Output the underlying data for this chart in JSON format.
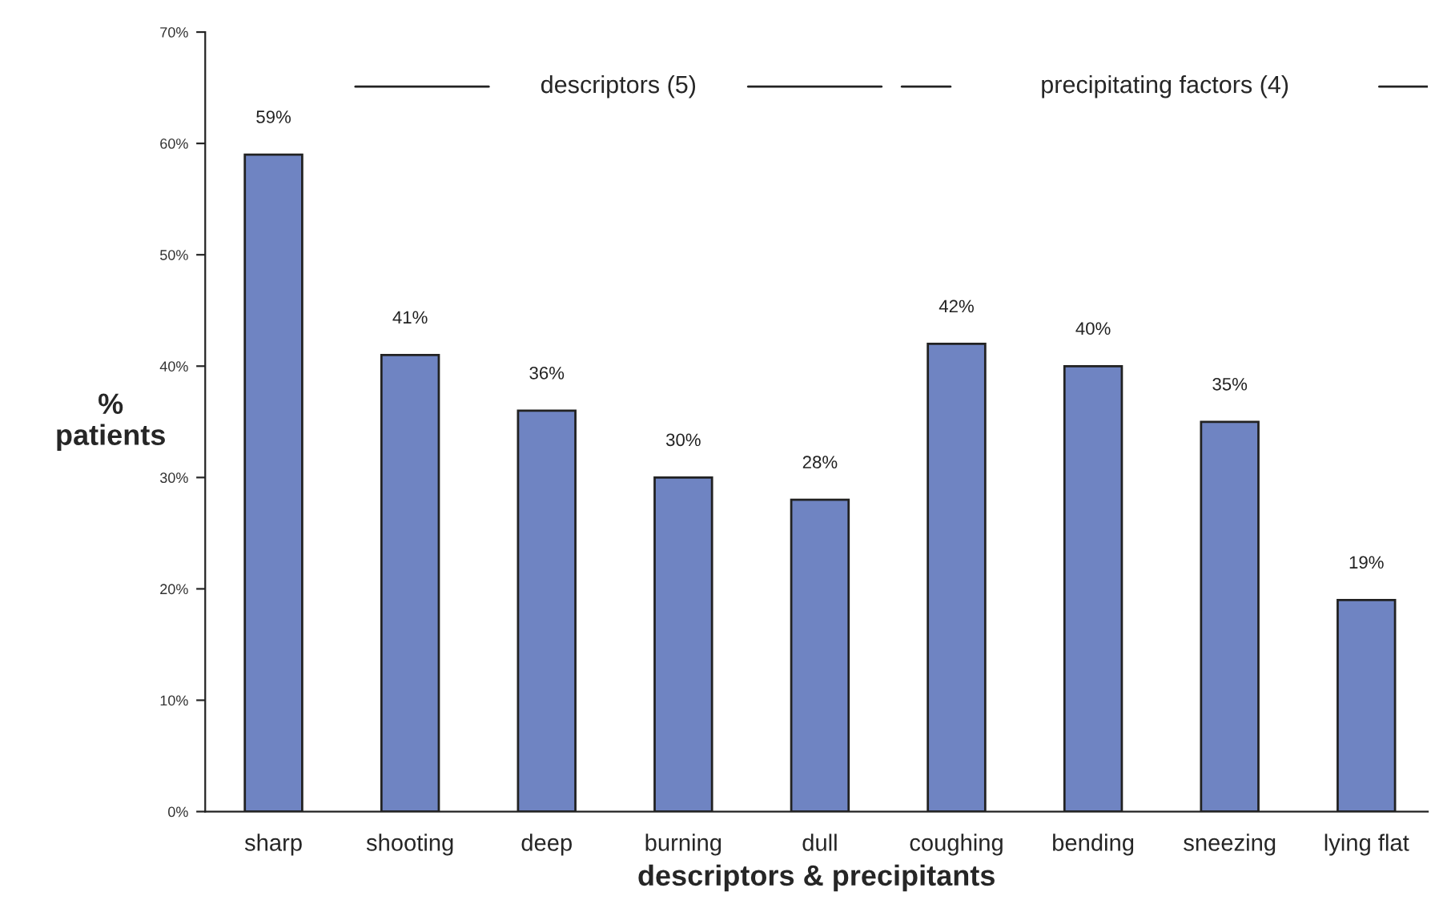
{
  "chart_data": {
    "type": "bar",
    "xlabel": "descriptors & precipitants",
    "ylabel": "%\npatients",
    "categories": [
      "sharp",
      "shooting",
      "deep",
      "burning",
      "dull",
      "coughing",
      "bending",
      "sneezing",
      "lying flat"
    ],
    "values": [
      59,
      41,
      36,
      30,
      28,
      42,
      40,
      35,
      19
    ],
    "value_labels": [
      "59%",
      "41%",
      "36%",
      "30%",
      "28%",
      "42%",
      "40%",
      "35%",
      "19%"
    ],
    "color": "#6f84c2",
    "ylim": [
      0,
      70
    ],
    "yticks": [
      {
        "value": 0,
        "label": "0%"
      },
      {
        "value": 10,
        "label": "10%"
      },
      {
        "value": 20,
        "label": "20%"
      },
      {
        "value": 30,
        "label": "30%"
      },
      {
        "value": 40,
        "label": "40%"
      },
      {
        "value": 50,
        "label": "50%"
      },
      {
        "value": 60,
        "label": "60%"
      },
      {
        "value": 70,
        "label": "70%"
      }
    ],
    "annotations": [
      "descriptors (5)",
      "precipitating factors (4)"
    ],
    "grid": false,
    "legend": false
  }
}
